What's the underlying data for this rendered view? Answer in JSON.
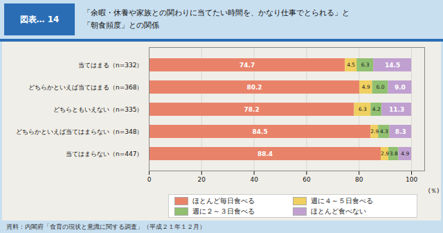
{
  "chart_data": {
    "type": "bar",
    "orientation": "horizontal",
    "stacked": true,
    "title": "「余暇・休養や家族との関わりに当てたい時間を、かなり仕事でとられる」と",
    "subtitle": "「朝食頻度」との関係",
    "annotations": [
      "図表… 14",
      "資料：内閣府「食育の現状と意識に関する調査」（平成２１年１２月）"
    ],
    "categories": [
      "当てはまる（n=332）",
      "どちらかといえば当てはまる（n=368）",
      "どちらともいえない（n=335）",
      "どちらかといえば当てはまらない（n=348）",
      "当てはまらない（n=447）"
    ],
    "series": [
      {
        "name": "ほとんど毎日食べる",
        "color": "#E8836A",
        "values": [
          74.7,
          80.2,
          78.2,
          84.5,
          88.4
        ],
        "value_labels": [
          "74.7",
          "80.2",
          "78.2",
          "84.5",
          "88.4"
        ]
      },
      {
        "name": "週に４～５日食べる",
        "color": "#F0D060",
        "values": [
          4.5,
          4.9,
          6.3,
          2.9,
          2.9
        ],
        "value_labels": [
          "4.5",
          "4.9",
          "6.3",
          "2.9",
          "2.9"
        ]
      },
      {
        "name": "週に２～３日食べる",
        "color": "#90C070",
        "values": [
          6.3,
          6.0,
          4.2,
          4.3,
          3.8
        ],
        "value_labels": [
          "6.3",
          "6.0",
          "4.2",
          "4.3",
          "3.8"
        ]
      },
      {
        "name": "ほとんど食べない",
        "color": "#C0A0D0",
        "values": [
          14.5,
          9.0,
          11.3,
          8.3,
          4.9
        ],
        "value_labels": [
          "14.5",
          "9.0",
          "11.3",
          "8.3",
          "4.9"
        ]
      }
    ],
    "xlabel": "(％)",
    "xlim": [
      0,
      105
    ],
    "xticks": [
      0,
      20,
      40,
      60,
      80,
      100
    ],
    "grid": true,
    "legend": "bottom",
    "data_labels": true
  }
}
